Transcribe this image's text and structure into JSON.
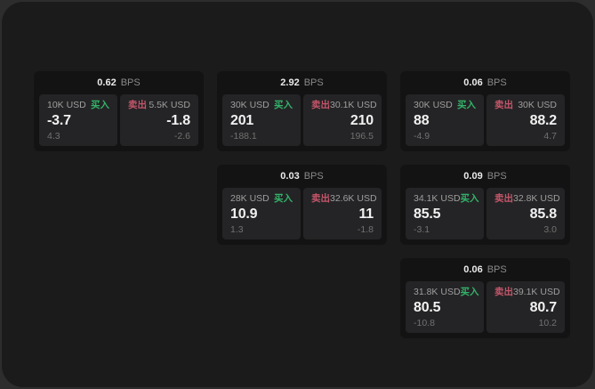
{
  "colors": {
    "backdrop": "#2d2d2d",
    "window_bg": "#1b1b1c",
    "card_bg": "#131313",
    "panel_bg": "#242426",
    "buy": "#33b369",
    "sell": "#c4566a"
  },
  "labels": {
    "bps_unit": "BPS",
    "buy": "买入",
    "sell": "卖出"
  },
  "cards": [
    {
      "row": 1,
      "col": 1,
      "bps": "0.62",
      "buy": {
        "amount": "10K USD",
        "side": "买入",
        "value": "-3.7",
        "sub": "4.3"
      },
      "sell": {
        "side": "卖出",
        "amount": "5.5K USD",
        "value": "-1.8",
        "sub": "-2.6"
      }
    },
    {
      "row": 1,
      "col": 2,
      "bps": "2.92",
      "buy": {
        "amount": "30K USD",
        "side": "买入",
        "value": "201",
        "sub": "-188.1"
      },
      "sell": {
        "side": "卖出",
        "amount": "30.1K USD",
        "value": "210",
        "sub": "196.5"
      }
    },
    {
      "row": 1,
      "col": 3,
      "bps": "0.06",
      "buy": {
        "amount": "30K USD",
        "side": "买入",
        "value": "88",
        "sub": "-4.9"
      },
      "sell": {
        "side": "卖出",
        "amount": "30K USD",
        "value": "88.2",
        "sub": "4.7"
      }
    },
    {
      "row": 2,
      "col": 2,
      "bps": "0.03",
      "buy": {
        "amount": "28K USD",
        "side": "买入",
        "value": "10.9",
        "sub": "1.3"
      },
      "sell": {
        "side": "卖出",
        "amount": "32.6K USD",
        "value": "11",
        "sub": "-1.8"
      }
    },
    {
      "row": 2,
      "col": 3,
      "bps": "0.09",
      "buy": {
        "amount": "34.1K USD",
        "side": "买入",
        "value": "85.5",
        "sub": "-3.1"
      },
      "sell": {
        "side": "卖出",
        "amount": "32.8K USD",
        "value": "85.8",
        "sub": "3.0"
      }
    },
    {
      "row": 3,
      "col": 3,
      "bps": "0.06",
      "buy": {
        "amount": "31.8K USD",
        "side": "买入",
        "value": "80.5",
        "sub": "-10.8"
      },
      "sell": {
        "side": "卖出",
        "amount": "39.1K USD",
        "value": "80.7",
        "sub": "10.2"
      }
    }
  ]
}
